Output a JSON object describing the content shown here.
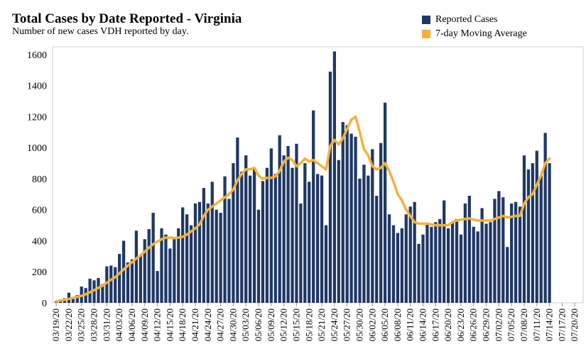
{
  "header": {
    "title": "Total Cases by Date Reported - Virginia",
    "subtitle": "Number of new cases VDH reported by day."
  },
  "colors": {
    "bars": "#1f3864",
    "line": "#f4b23a",
    "axis": "#cccccc"
  },
  "chart_data": {
    "type": "bar",
    "title": "Total Cases by Date Reported - Virginia",
    "subtitle": "Number of new cases VDH reported by day.",
    "xlabel": "",
    "ylabel": "",
    "ylim": [
      0,
      1650
    ],
    "yticks": [
      0,
      200,
      400,
      600,
      800,
      1000,
      1200,
      1400,
      1600
    ],
    "grid": false,
    "legend_position": "top-right",
    "x_start": "03/19/20",
    "x_tick_labels": [
      "03/19/20",
      "03/22/20",
      "03/25/20",
      "03/28/20",
      "03/31/20",
      "04/03/20",
      "04/06/20",
      "04/09/20",
      "04/12/20",
      "04/15/20",
      "04/18/20",
      "04/21/20",
      "04/24/20",
      "04/27/20",
      "04/30/20",
      "05/03/20",
      "05/06/20",
      "05/09/20",
      "05/12/20",
      "05/15/20",
      "05/18/20",
      "05/21/20",
      "05/24/20",
      "05/27/20",
      "05/30/20",
      "06/02/20",
      "06/05/20",
      "06/08/20",
      "06/11/20",
      "06/14/20",
      "06/17/20",
      "06/20/20",
      "06/23/20",
      "06/26/20",
      "06/29/20",
      "07/02/20",
      "07/05/20",
      "07/08/20",
      "07/11/20",
      "07/14/20",
      "07/17/20",
      "07/20/20"
    ],
    "series": [
      {
        "name": "Reported Cases",
        "type": "bar",
        "values": [
          10,
          15,
          30,
          65,
          35,
          50,
          105,
          95,
          155,
          145,
          160,
          120,
          235,
          240,
          230,
          315,
          400,
          260,
          280,
          465,
          300,
          410,
          475,
          580,
          205,
          480,
          440,
          350,
          410,
          480,
          615,
          570,
          500,
          640,
          650,
          740,
          640,
          780,
          600,
          580,
          815,
          670,
          900,
          1065,
          845,
          950,
          820,
          870,
          600,
          785,
          870,
          995,
          830,
          1080,
          950,
          1010,
          870,
          1025,
          640,
          900,
          780,
          1240,
          830,
          820,
          500,
          1490,
          1620,
          920,
          1165,
          1145,
          1090,
          1070,
          800,
          890,
          820,
          990,
          690,
          1030,
          1290,
          570,
          500,
          450,
          480,
          570,
          620,
          650,
          380,
          440,
          510,
          490,
          520,
          540,
          660,
          480,
          520,
          540,
          440,
          640,
          690,
          490,
          460,
          610,
          510,
          520,
          670,
          720,
          680,
          360,
          640,
          650,
          620,
          950,
          860,
          900,
          980,
          820,
          1095,
          900
        ]
      },
      {
        "name": "7-day Moving Average",
        "type": "line",
        "values": [
          10,
          15,
          20,
          25,
          32,
          38,
          45,
          55,
          68,
          82,
          97,
          110,
          130,
          148,
          165,
          190,
          215,
          240,
          262,
          285,
          305,
          330,
          355,
          378,
          395,
          410,
          420,
          420,
          418,
          420,
          425,
          440,
          460,
          480,
          505,
          560,
          600,
          620,
          640,
          660,
          680,
          700,
          730,
          790,
          830,
          860,
          860,
          870,
          820,
          800,
          805,
          805,
          815,
          850,
          910,
          935,
          920,
          880,
          900,
          930,
          910,
          920,
          900,
          880,
          860,
          1010,
          1050,
          1020,
          1060,
          1120,
          1180,
          1200,
          1100,
          990,
          950,
          880,
          860,
          870,
          900,
          850,
          780,
          700,
          660,
          600,
          560,
          520,
          510,
          510,
          510,
          505,
          500,
          500,
          500,
          500,
          520,
          530,
          535,
          540,
          545,
          535,
          530,
          530,
          530,
          530,
          540,
          550,
          560,
          550,
          555,
          560,
          560,
          640,
          680,
          700,
          760,
          820,
          900,
          930
        ]
      }
    ]
  }
}
